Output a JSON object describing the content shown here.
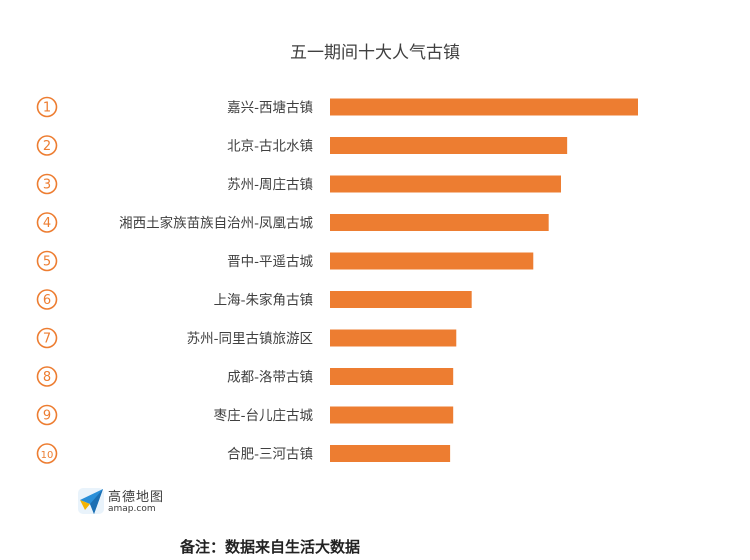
{
  "colors": {
    "bar": "#ED7D31",
    "rank_circle": "#ED7D31",
    "label_text": "#404040",
    "title_text": "#404040"
  },
  "logo": {
    "name": "高德地图",
    "url": "amap.com",
    "icon": "amap-paper-plane-icon"
  },
  "footnote": "备注：数据来自生活大数据",
  "chart_data": {
    "type": "bar",
    "orientation": "horizontal",
    "title": "五一期间十大人气古镇",
    "ranks": [
      "1",
      "2",
      "3",
      "4",
      "5",
      "6",
      "7",
      "8",
      "9",
      "10"
    ],
    "categories": [
      "嘉兴-西塘古镇",
      "北京-古北水镇",
      "苏州-周庄古镇",
      "湘西土家族苗族自治州-凤凰古城",
      "晋中-平遥古城",
      "上海-朱家角古镇",
      "苏州-同里古镇旅游区",
      "成都-洛带古镇",
      "枣庄-台儿庄古城",
      "合肥-三河古镇"
    ],
    "values": [
      100,
      77,
      75,
      71,
      66,
      46,
      41,
      40,
      40,
      39
    ],
    "xlim": [
      0,
      100
    ],
    "axes_visible": false,
    "grid": false,
    "legend": "none"
  }
}
